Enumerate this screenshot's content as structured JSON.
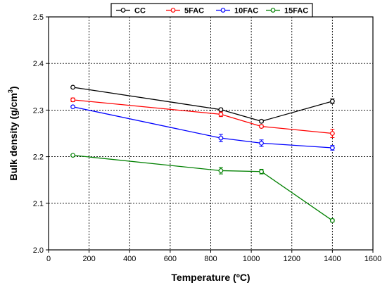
{
  "chart_data": {
    "type": "line",
    "xlabel": "Temperature (ºC)",
    "ylabel_main": "Bulk density (g/cm",
    "ylabel_sup": "3",
    "ylabel_close": ")",
    "xlim": [
      0,
      1600
    ],
    "ylim": [
      2.0,
      2.5
    ],
    "xticks": [
      "0",
      "200",
      "400",
      "600",
      "800",
      "1000",
      "1200",
      "1400",
      "1600"
    ],
    "yticks": [
      "2.0",
      "2.1",
      "2.2",
      "2.3",
      "2.4",
      "2.5"
    ],
    "grid": true,
    "legend_position": "top",
    "series": [
      {
        "name": "CC",
        "color": "#000000",
        "x": [
          120,
          850,
          1050,
          1400
        ],
        "y": [
          2.349,
          2.301,
          2.276,
          2.319
        ],
        "err": [
          0,
          0.003,
          0.003,
          0.005
        ]
      },
      {
        "name": "5FAC",
        "color": "#ff0000",
        "x": [
          120,
          850,
          1050,
          1400
        ],
        "y": [
          2.322,
          2.291,
          2.265,
          2.25
        ],
        "err": [
          0.004,
          0.005,
          0.003,
          0.009
        ]
      },
      {
        "name": "10FAC",
        "color": "#0000ff",
        "x": [
          120,
          850,
          1050,
          1400
        ],
        "y": [
          2.307,
          2.24,
          2.229,
          2.219
        ],
        "err": [
          0,
          0.008,
          0.007,
          0.005
        ]
      },
      {
        "name": "15FAC",
        "color": "#008000",
        "x": [
          120,
          850,
          1050,
          1400
        ],
        "y": [
          2.203,
          2.17,
          2.168,
          2.063
        ],
        "err": [
          0,
          0.007,
          0.005,
          0.003
        ]
      }
    ]
  }
}
